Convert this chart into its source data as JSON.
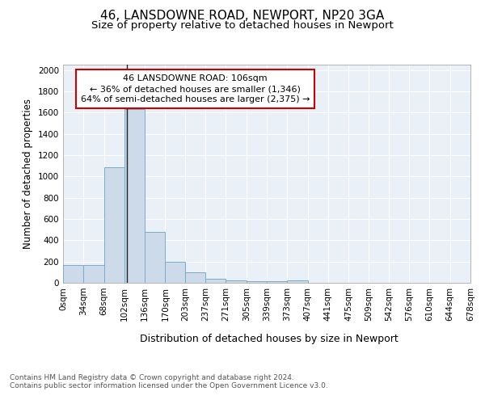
{
  "title": "46, LANSDOWNE ROAD, NEWPORT, NP20 3GA",
  "subtitle": "Size of property relative to detached houses in Newport",
  "xlabel": "Distribution of detached houses by size in Newport",
  "ylabel": "Number of detached properties",
  "bar_color": "#ccdaea",
  "bar_edge_color": "#7aaacb",
  "annotation_line1": "46 LANSDOWNE ROAD: 106sqm",
  "annotation_line2": "← 36% of detached houses are smaller (1,346)",
  "annotation_line3": "64% of semi-detached houses are larger (2,375) →",
  "annotation_box_color": "#ffffff",
  "annotation_box_edge_color": "#cc0000",
  "property_line_x": 106,
  "property_line_color": "#222222",
  "bin_edges": [
    0,
    34,
    68,
    102,
    136,
    170,
    203,
    237,
    271,
    305,
    339,
    373,
    407,
    441,
    475,
    509,
    542,
    576,
    610,
    644,
    678
  ],
  "bin_heights": [
    165,
    165,
    1085,
    1630,
    480,
    200,
    100,
    40,
    25,
    15,
    15,
    20,
    0,
    0,
    0,
    0,
    0,
    0,
    0,
    0
  ],
  "xlim": [
    0,
    678
  ],
  "ylim": [
    0,
    2050
  ],
  "yticks": [
    0,
    200,
    400,
    600,
    800,
    1000,
    1200,
    1400,
    1600,
    1800,
    2000
  ],
  "xtick_labels": [
    "0sqm",
    "34sqm",
    "68sqm",
    "102sqm",
    "136sqm",
    "170sqm",
    "203sqm",
    "237sqm",
    "271sqm",
    "305sqm",
    "339sqm",
    "373sqm",
    "407sqm",
    "441sqm",
    "475sqm",
    "509sqm",
    "542sqm",
    "576sqm",
    "610sqm",
    "644sqm",
    "678sqm"
  ],
  "background_color": "#eaf0f8",
  "footer_text": "Contains HM Land Registry data © Crown copyright and database right 2024.\nContains public sector information licensed under the Open Government Licence v3.0.",
  "title_fontsize": 11,
  "subtitle_fontsize": 9.5,
  "xlabel_fontsize": 9,
  "ylabel_fontsize": 8.5,
  "tick_fontsize": 7.5,
  "footer_fontsize": 6.5,
  "annotation_fontsize": 8
}
